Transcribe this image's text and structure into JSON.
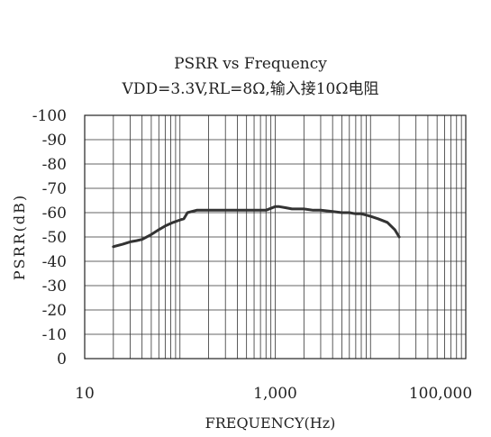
{
  "chart_data": {
    "type": "line",
    "title": "PSRR vs Frequency",
    "subtitle": "VDD=3.3V,RL=8Ω,输入接10Ω电阻",
    "xlabel": "FREQUENCY(Hz)",
    "ylabel": "PSRR(dB)",
    "x_scale": "log",
    "xlim": [
      10,
      100000
    ],
    "ylim": [
      0,
      -100
    ],
    "x_ticks": [
      {
        "value": 10,
        "label": "10"
      },
      {
        "value": 1000,
        "label": "1,000"
      },
      {
        "value": 100000,
        "label": "100,000"
      }
    ],
    "y_ticks": [
      {
        "value": -100,
        "label": "-100"
      },
      {
        "value": -90,
        "label": "-90"
      },
      {
        "value": -80,
        "label": "-80"
      },
      {
        "value": -70,
        "label": "-70"
      },
      {
        "value": -60,
        "label": "-60"
      },
      {
        "value": -50,
        "label": "-50"
      },
      {
        "value": -40,
        "label": "-40"
      },
      {
        "value": -30,
        "label": "-30"
      },
      {
        "value": -20,
        "label": "-20"
      },
      {
        "value": -10,
        "label": "-10"
      },
      {
        "value": 0,
        "label": "0"
      }
    ],
    "grid": true,
    "series": [
      {
        "color": "#333333",
        "x": [
          20,
          25,
          30,
          35,
          40,
          50,
          60,
          70,
          85,
          100,
          110,
          120,
          150,
          200,
          300,
          500,
          800,
          1000,
          1100,
          1300,
          1500,
          2000,
          2500,
          3000,
          4000,
          5000,
          6000,
          7000,
          8000,
          9000,
          10000,
          12000,
          15000,
          18000,
          20000
        ],
        "y": [
          -46,
          -47,
          -48,
          -48.5,
          -49,
          -51,
          -53,
          -54.5,
          -56,
          -57,
          -57.5,
          -60,
          -61,
          -61,
          -61,
          -61,
          -61,
          -62.5,
          -62.5,
          -62,
          -61.5,
          -61.5,
          -61,
          -61,
          -60.5,
          -60,
          -60,
          -59.5,
          -59.5,
          -59,
          -58.5,
          -57.5,
          -56,
          -53,
          -50
        ]
      }
    ]
  }
}
